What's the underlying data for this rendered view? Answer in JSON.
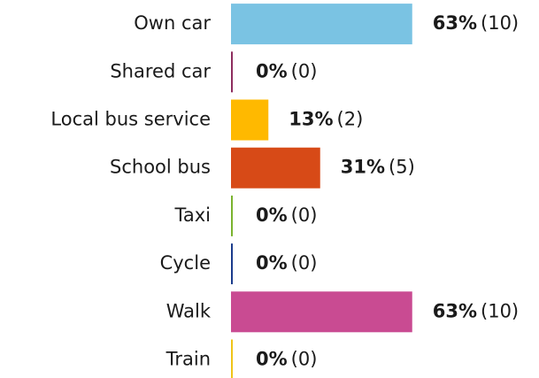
{
  "chart_data": {
    "type": "bar",
    "orientation": "horizontal",
    "categories": [
      "Own car",
      "Shared car",
      "Local bus service",
      "School bus",
      "Taxi",
      "Cycle",
      "Walk",
      "Train"
    ],
    "values": [
      63,
      0,
      13,
      31,
      0,
      0,
      63,
      0
    ],
    "value_labels": [
      "63%",
      "0%",
      "13%",
      "31%",
      "0%",
      "0%",
      "63%",
      "0%"
    ],
    "counts": [
      10,
      0,
      2,
      5,
      0,
      0,
      10,
      0
    ],
    "count_labels": [
      "(10)",
      "(0)",
      "(2)",
      "(5)",
      "(0)",
      "(0)",
      "(10)",
      "(0)"
    ],
    "colors": [
      "#7ac3e3",
      "#8e2d5e",
      "#ffb900",
      "#d74a17",
      "#7ab32e",
      "#1b3c8c",
      "#c94b92",
      "#f0c419"
    ],
    "xlim": [
      0,
      100
    ]
  }
}
